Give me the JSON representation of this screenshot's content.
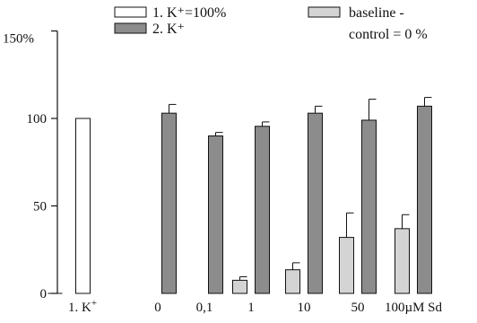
{
  "chart_data": {
    "type": "bar",
    "title": "",
    "xlabel": "",
    "ylabel": "",
    "ylim": [
      0,
      150
    ],
    "y_ticks": [
      0,
      50,
      100
    ],
    "y_top_tick": 150,
    "y_top_tick_label": "150%",
    "categories": [
      "1. K⁺",
      "0",
      "0,1",
      "1",
      "10",
      "50",
      "100µM Sd"
    ],
    "legend_placement": "top",
    "grid": false,
    "series": [
      {
        "name": "baseline - control = 0 %",
        "legend_label_lines": [
          "baseline -",
          "control = 0 %"
        ],
        "color": "#d4d4d4",
        "values": [
          0,
          null,
          null,
          7.5,
          13.5,
          32,
          37
        ],
        "errors": [
          null,
          null,
          null,
          2,
          4,
          14,
          8
        ]
      },
      {
        "name": "1. K⁺=100%",
        "legend_label": "1. K⁺=100%",
        "color": "#ffffff",
        "values": [
          100,
          null,
          null,
          null,
          null,
          null,
          null
        ],
        "errors": [
          null,
          null,
          null,
          null,
          null,
          null,
          null
        ]
      },
      {
        "name": "2. K⁺",
        "legend_label": "2. K⁺",
        "color": "#8c8c8c",
        "values": [
          null,
          103,
          90,
          95.5,
          103,
          99,
          107
        ],
        "errors": [
          null,
          5,
          2,
          2.5,
          4,
          12,
          5
        ]
      }
    ]
  }
}
